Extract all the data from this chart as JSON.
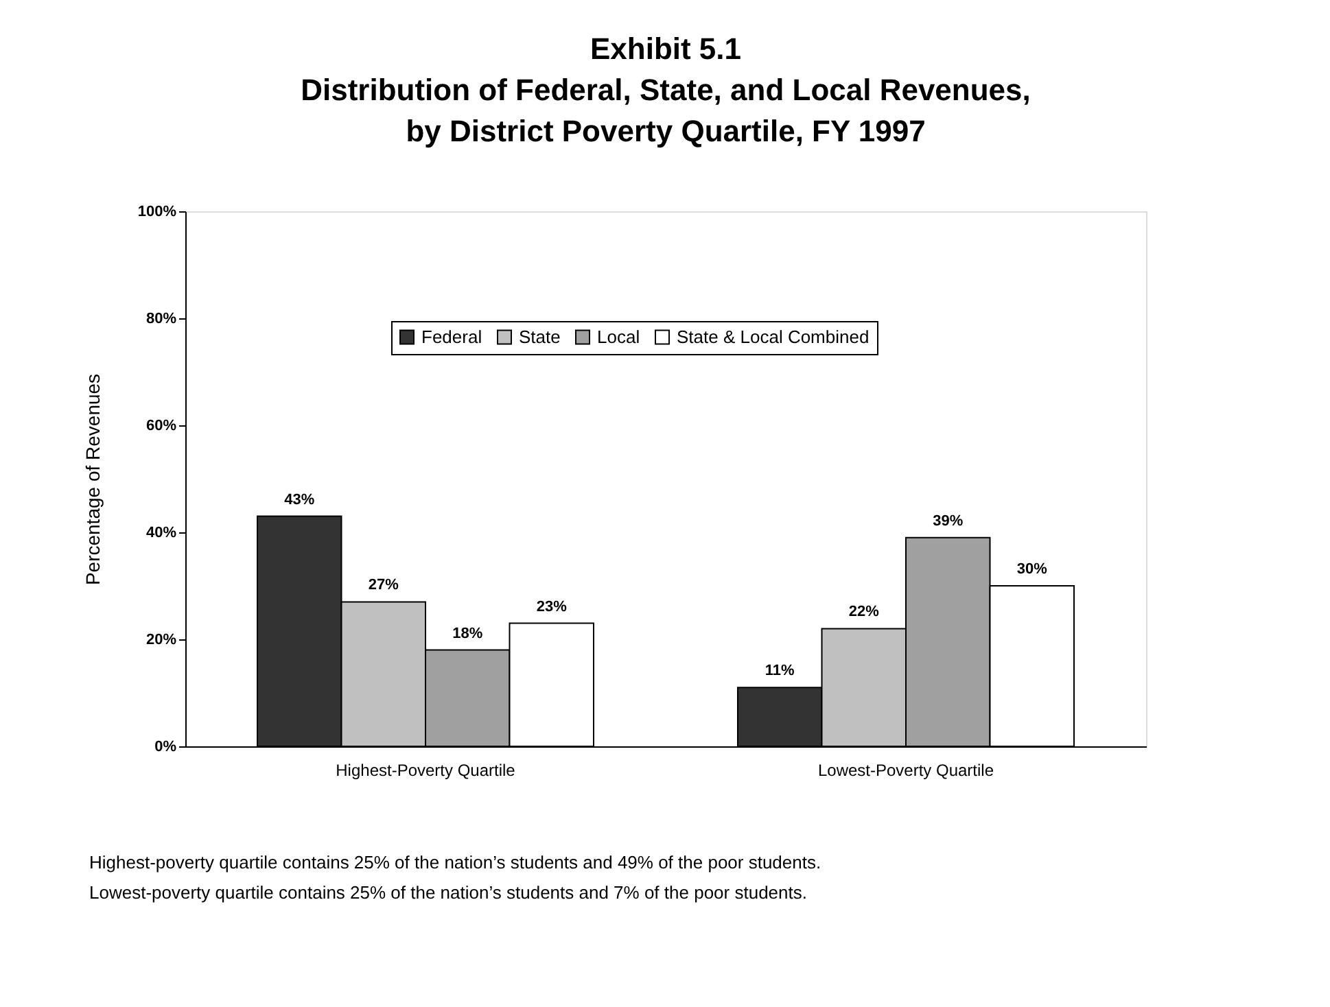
{
  "chart_data": {
    "type": "bar",
    "title": "Exhibit 5.1\nDistribution of Federal, State, and Local Revenues,\nby District Poverty Quartile, FY 1997",
    "ylabel": "Percentage of Revenues",
    "categories": [
      "Highest-Poverty Quartile",
      "Lowest-Poverty Quartile"
    ],
    "series": [
      {
        "name": "Federal",
        "color": "#333333",
        "values": [
          43,
          11
        ],
        "value_labels": [
          "43%",
          "11%"
        ]
      },
      {
        "name": "State",
        "color": "#c0c0c0",
        "values": [
          27,
          22
        ],
        "value_labels": [
          "27%",
          "22%"
        ]
      },
      {
        "name": "Local",
        "color": "#a0a0a0",
        "values": [
          18,
          39
        ],
        "value_labels": [
          "18%",
          "39%"
        ]
      },
      {
        "name": "State & Local Combined",
        "color": "#ffffff",
        "values": [
          23,
          30
        ],
        "value_labels": [
          "23%",
          "30%"
        ]
      }
    ],
    "ylim": [
      0,
      100
    ],
    "yticks": [
      {
        "value": 0,
        "label": "0%"
      },
      {
        "value": 20,
        "label": "20%"
      },
      {
        "value": 40,
        "label": "40%"
      },
      {
        "value": 60,
        "label": "60%"
      },
      {
        "value": 80,
        "label": "80%"
      },
      {
        "value": 100,
        "label": "100%"
      }
    ],
    "grid": false,
    "legend": "top",
    "annotations": [
      "Highest-poverty quartile contains 25% of the nation’s students and 49% of the poor students.",
      "Lowest-poverty quartile contains 25% of the nation’s students and 7% of the poor students."
    ]
  }
}
